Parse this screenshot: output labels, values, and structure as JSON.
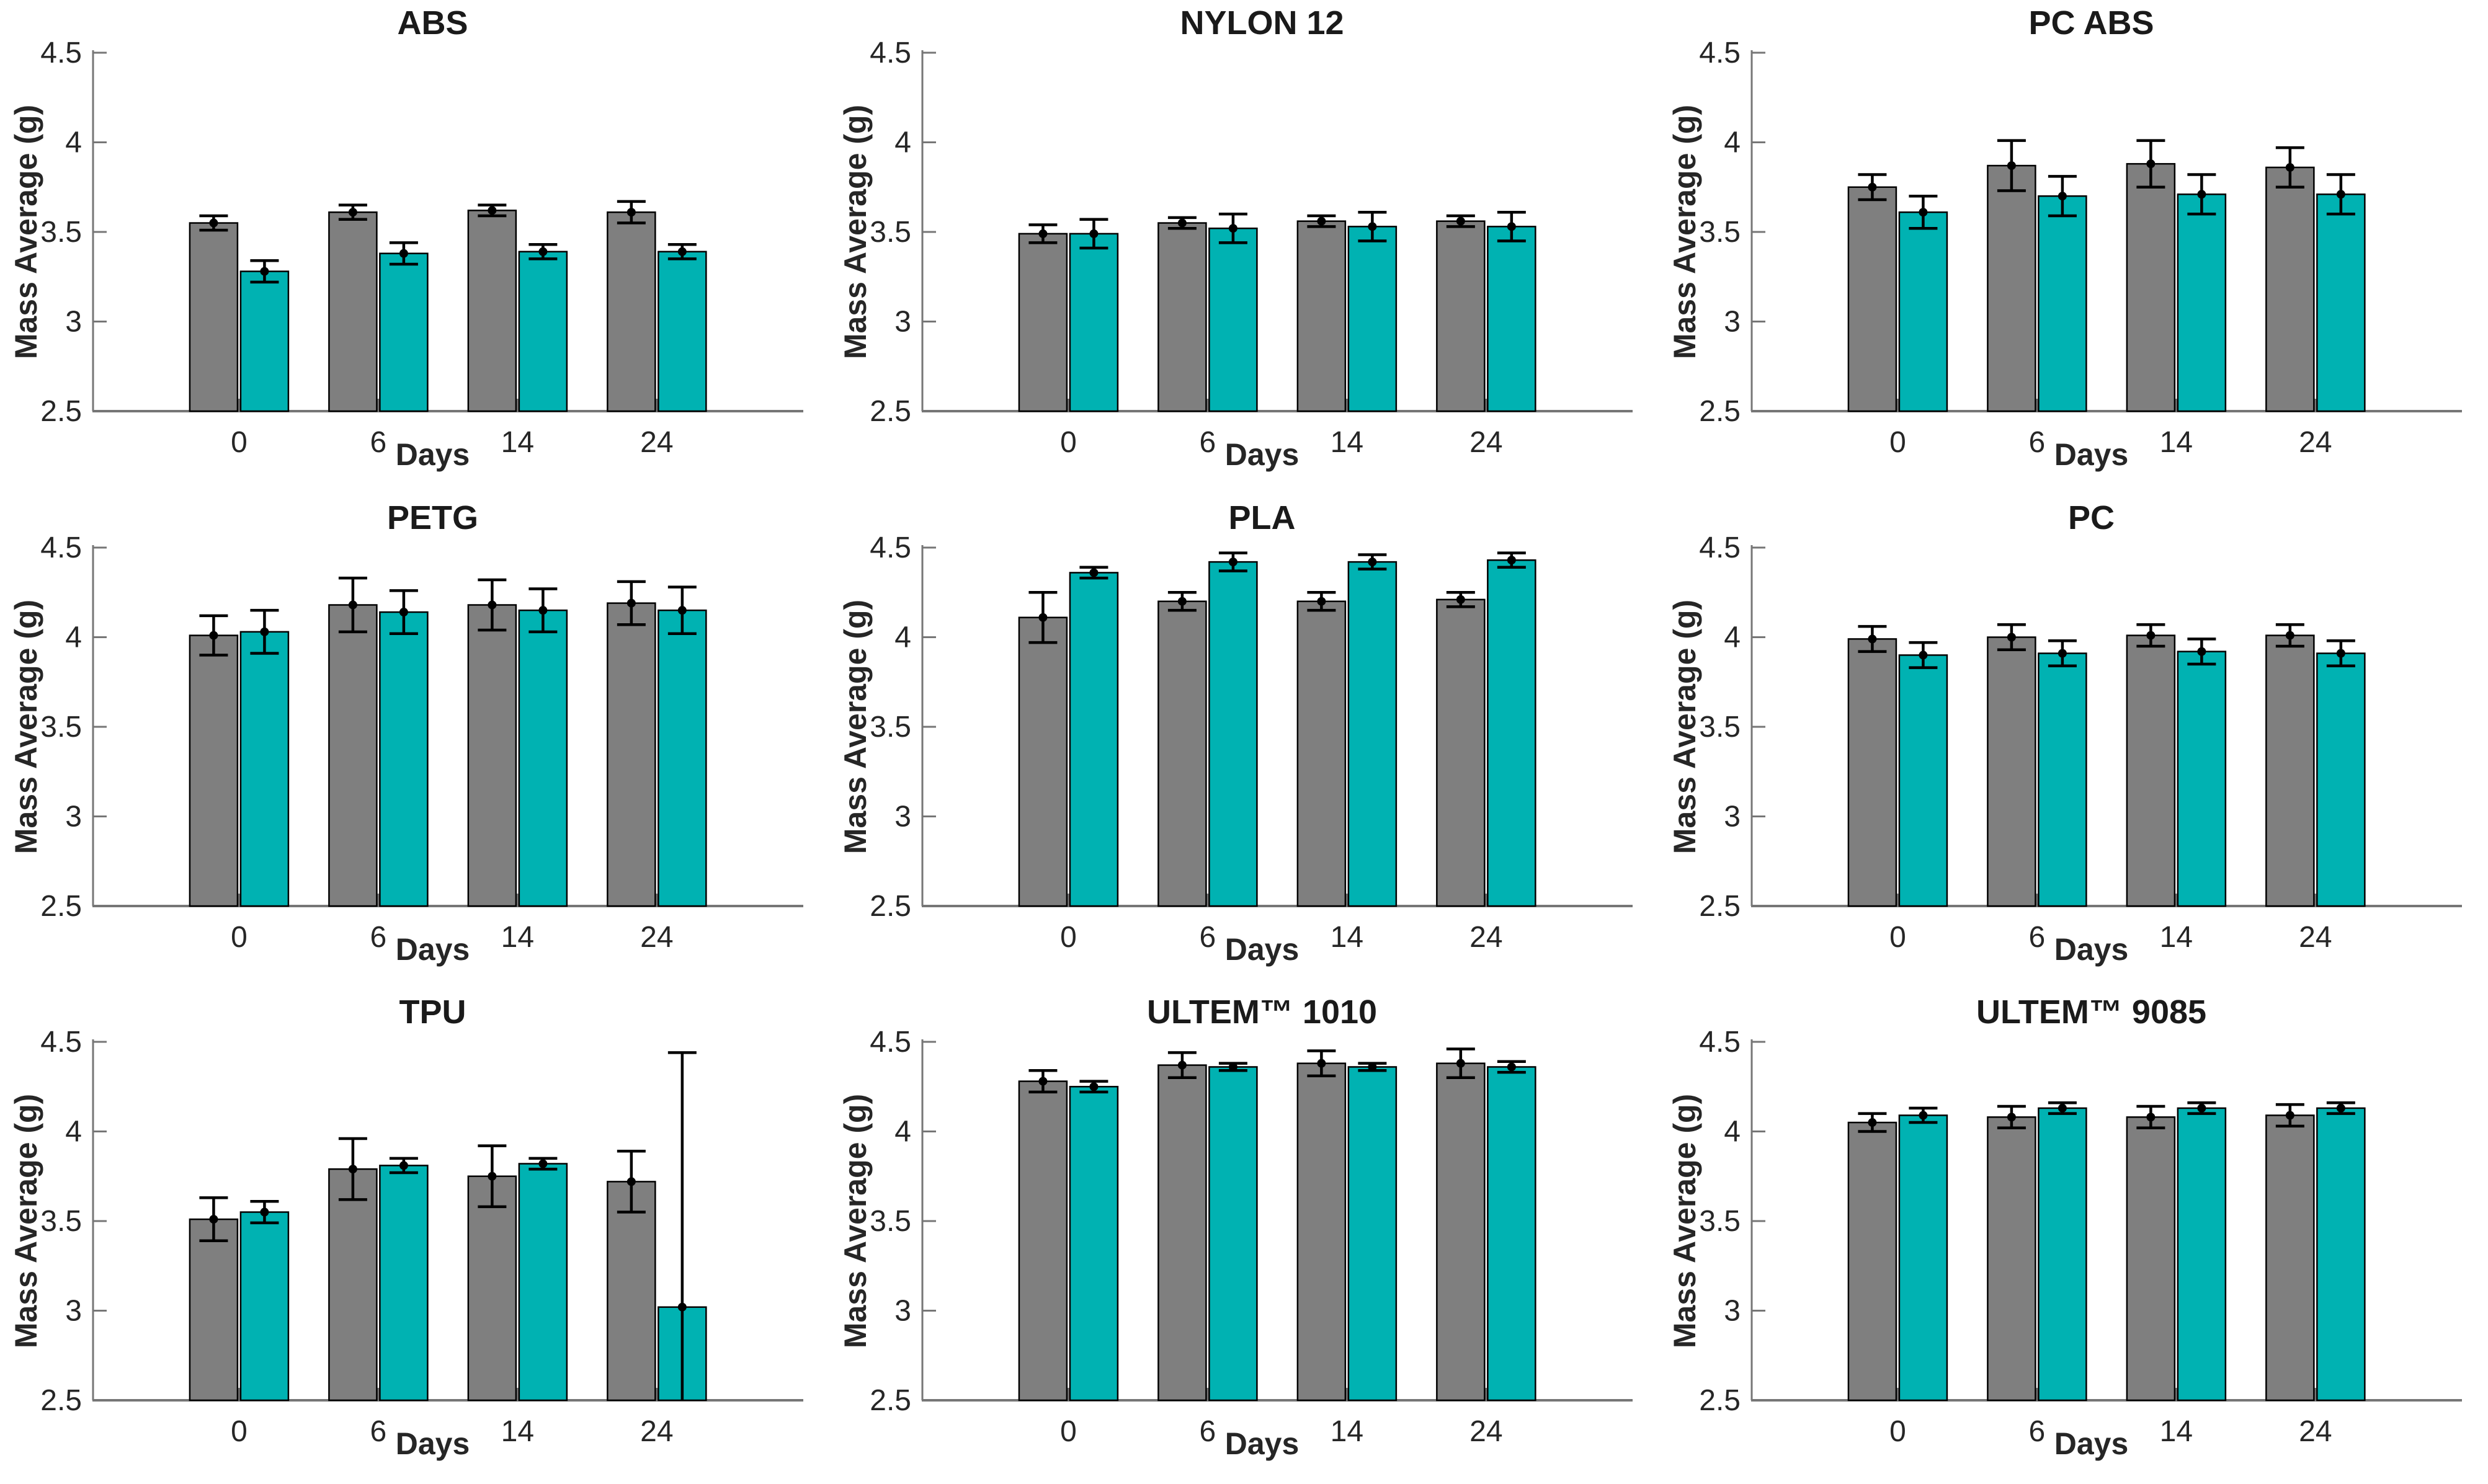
{
  "figure": {
    "background": "#ffffff",
    "bar_gray": "#7f7f7f",
    "bar_teal": "#00b2b2",
    "axis_color": "#767676",
    "text_color": "#262626"
  },
  "chart_data": [
    {
      "type": "bar",
      "title": "ABS",
      "xlabel": "Days",
      "ylabel": "Mass Average (g)",
      "categories": [
        "0",
        "6",
        "14",
        "24"
      ],
      "ylim": [
        2.5,
        4.5
      ],
      "yticks": [
        2.5,
        3,
        3.5,
        4,
        4.5
      ],
      "series": [
        {
          "name": "gray-bars",
          "color": "#7f7f7f",
          "values": [
            3.55,
            3.61,
            3.62,
            3.61
          ],
          "errors": [
            0.04,
            0.04,
            0.03,
            0.06
          ]
        },
        {
          "name": "teal-bars",
          "color": "#00b2b2",
          "values": [
            3.28,
            3.38,
            3.39,
            3.39
          ],
          "errors": [
            0.06,
            0.06,
            0.04,
            0.04
          ]
        }
      ]
    },
    {
      "type": "bar",
      "title": "NYLON 12",
      "xlabel": "Days",
      "ylabel": "Mass Average (g)",
      "categories": [
        "0",
        "6",
        "14",
        "24"
      ],
      "ylim": [
        2.5,
        4.5
      ],
      "yticks": [
        2.5,
        3,
        3.5,
        4,
        4.5
      ],
      "series": [
        {
          "name": "gray-bars",
          "color": "#7f7f7f",
          "values": [
            3.49,
            3.55,
            3.56,
            3.56
          ],
          "errors": [
            0.05,
            0.03,
            0.03,
            0.03
          ]
        },
        {
          "name": "teal-bars",
          "color": "#00b2b2",
          "values": [
            3.49,
            3.52,
            3.53,
            3.53
          ],
          "errors": [
            0.08,
            0.08,
            0.08,
            0.08
          ]
        }
      ]
    },
    {
      "type": "bar",
      "title": "PC ABS",
      "xlabel": "Days",
      "ylabel": "Mass Average (g)",
      "categories": [
        "0",
        "6",
        "14",
        "24"
      ],
      "ylim": [
        2.5,
        4.5
      ],
      "yticks": [
        2.5,
        3,
        3.5,
        4,
        4.5
      ],
      "series": [
        {
          "name": "gray-bars",
          "color": "#7f7f7f",
          "values": [
            3.75,
            3.87,
            3.88,
            3.86
          ],
          "errors": [
            0.07,
            0.14,
            0.13,
            0.11
          ]
        },
        {
          "name": "teal-bars",
          "color": "#00b2b2",
          "values": [
            3.61,
            3.7,
            3.71,
            3.71
          ],
          "errors": [
            0.09,
            0.11,
            0.11,
            0.11
          ]
        }
      ]
    },
    {
      "type": "bar",
      "title": "PETG",
      "xlabel": "Days",
      "ylabel": "Mass Average (g)",
      "categories": [
        "0",
        "6",
        "14",
        "24"
      ],
      "ylim": [
        2.5,
        4.5
      ],
      "yticks": [
        2.5,
        3,
        3.5,
        4,
        4.5
      ],
      "series": [
        {
          "name": "gray-bars",
          "color": "#7f7f7f",
          "values": [
            4.01,
            4.18,
            4.18,
            4.19
          ],
          "errors": [
            0.11,
            0.15,
            0.14,
            0.12
          ]
        },
        {
          "name": "teal-bars",
          "color": "#00b2b2",
          "values": [
            4.03,
            4.14,
            4.15,
            4.15
          ],
          "errors": [
            0.12,
            0.12,
            0.12,
            0.13
          ]
        }
      ]
    },
    {
      "type": "bar",
      "title": "PLA",
      "xlabel": "Days",
      "ylabel": "Mass Average (g)",
      "categories": [
        "0",
        "6",
        "14",
        "24"
      ],
      "ylim": [
        2.5,
        4.5
      ],
      "yticks": [
        2.5,
        3,
        3.5,
        4,
        4.5
      ],
      "series": [
        {
          "name": "gray-bars",
          "color": "#7f7f7f",
          "values": [
            4.11,
            4.2,
            4.2,
            4.21
          ],
          "errors": [
            0.14,
            0.05,
            0.05,
            0.04
          ]
        },
        {
          "name": "teal-bars",
          "color": "#00b2b2",
          "values": [
            4.36,
            4.42,
            4.42,
            4.43
          ],
          "errors": [
            0.03,
            0.05,
            0.04,
            0.04
          ]
        }
      ]
    },
    {
      "type": "bar",
      "title": "PC",
      "xlabel": "Days",
      "ylabel": "Mass Average (g)",
      "categories": [
        "0",
        "6",
        "14",
        "24"
      ],
      "ylim": [
        2.5,
        4.5
      ],
      "yticks": [
        2.5,
        3,
        3.5,
        4,
        4.5
      ],
      "series": [
        {
          "name": "gray-bars",
          "color": "#7f7f7f",
          "values": [
            3.99,
            4.0,
            4.01,
            4.01
          ],
          "errors": [
            0.07,
            0.07,
            0.06,
            0.06
          ]
        },
        {
          "name": "teal-bars",
          "color": "#00b2b2",
          "values": [
            3.9,
            3.91,
            3.92,
            3.91
          ],
          "errors": [
            0.07,
            0.07,
            0.07,
            0.07
          ]
        }
      ]
    },
    {
      "type": "bar",
      "title": "TPU",
      "xlabel": "Days",
      "ylabel": "Mass Average (g)",
      "categories": [
        "0",
        "6",
        "14",
        "24"
      ],
      "ylim": [
        2.5,
        4.5
      ],
      "yticks": [
        2.5,
        3,
        3.5,
        4,
        4.5
      ],
      "series": [
        {
          "name": "gray-bars",
          "color": "#7f7f7f",
          "values": [
            3.51,
            3.79,
            3.75,
            3.72
          ],
          "errors": [
            0.12,
            0.17,
            0.17,
            0.17
          ]
        },
        {
          "name": "teal-bars",
          "color": "#00b2b2",
          "values": [
            3.55,
            3.81,
            3.82,
            3.02
          ],
          "errors": [
            0.06,
            0.04,
            0.03,
            1.42
          ]
        }
      ]
    },
    {
      "type": "bar",
      "title": "ULTEM™ 1010",
      "xlabel": "Days",
      "ylabel": "Mass Average (g)",
      "categories": [
        "0",
        "6",
        "14",
        "24"
      ],
      "ylim": [
        2.5,
        4.5
      ],
      "yticks": [
        2.5,
        3,
        3.5,
        4,
        4.5
      ],
      "series": [
        {
          "name": "gray-bars",
          "color": "#7f7f7f",
          "values": [
            4.28,
            4.37,
            4.38,
            4.38
          ],
          "errors": [
            0.06,
            0.07,
            0.07,
            0.08
          ]
        },
        {
          "name": "teal-bars",
          "color": "#00b2b2",
          "values": [
            4.25,
            4.36,
            4.36,
            4.36
          ],
          "errors": [
            0.03,
            0.02,
            0.02,
            0.03
          ]
        }
      ]
    },
    {
      "type": "bar",
      "title": "ULTEM™ 9085",
      "xlabel": "Days",
      "ylabel": "Mass Average (g)",
      "categories": [
        "0",
        "6",
        "14",
        "24"
      ],
      "ylim": [
        2.5,
        4.5
      ],
      "yticks": [
        2.5,
        3,
        3.5,
        4,
        4.5
      ],
      "series": [
        {
          "name": "gray-bars",
          "color": "#7f7f7f",
          "values": [
            4.05,
            4.08,
            4.08,
            4.09
          ],
          "errors": [
            0.05,
            0.06,
            0.06,
            0.06
          ]
        },
        {
          "name": "teal-bars",
          "color": "#00b2b2",
          "values": [
            4.09,
            4.13,
            4.13,
            4.13
          ],
          "errors": [
            0.04,
            0.03,
            0.03,
            0.03
          ]
        }
      ]
    }
  ]
}
